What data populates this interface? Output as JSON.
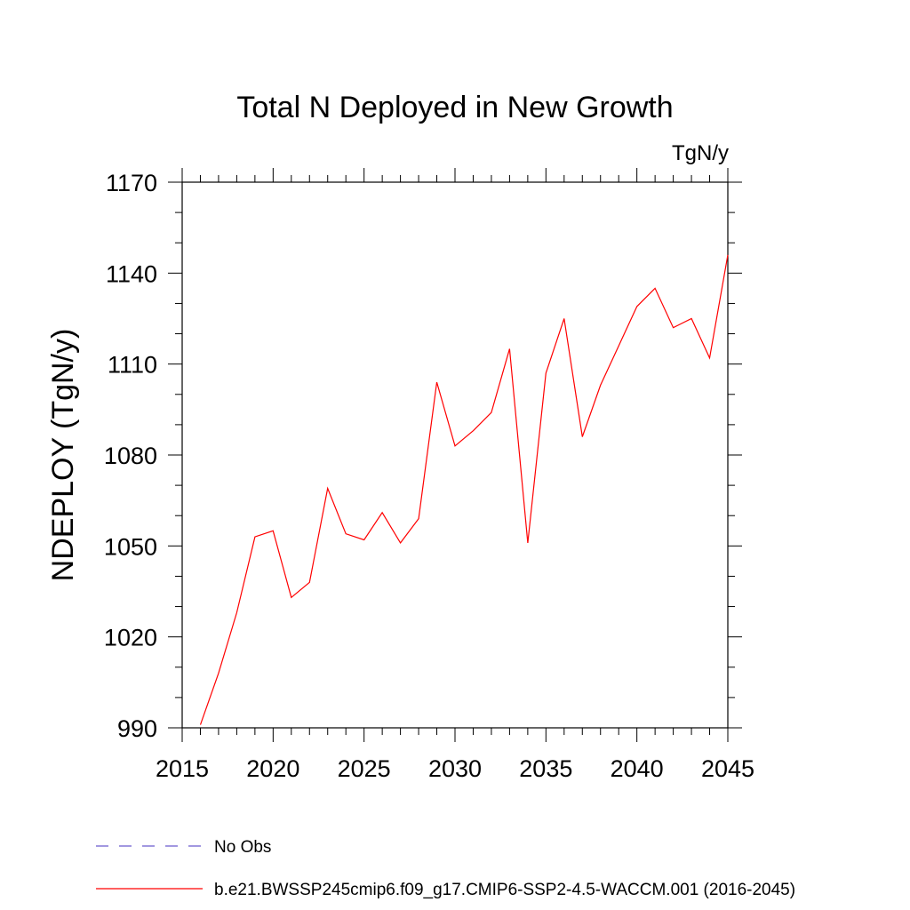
{
  "chart_data": {
    "type": "line",
    "title": "Total N Deployed in New Growth",
    "units_label": "TgN/y",
    "ylabel": "NDEPLOY  (TgN/y)",
    "xlabel": "",
    "xlim": [
      2015,
      2045
    ],
    "ylim": [
      990,
      1170
    ],
    "x_ticks": [
      2015,
      2020,
      2025,
      2030,
      2035,
      2040,
      2045
    ],
    "y_ticks": [
      990,
      1020,
      1050,
      1080,
      1110,
      1140,
      1170
    ],
    "x_minor_step": 1,
    "y_minor_step": 10,
    "grid": false,
    "legend_position": "bottom-left, below plot",
    "series": [
      {
        "name": "b.e21.BWSSP245cmip6.f09_g17.CMIP6-SSP2-4.5-WACCM.001 (2016-2045)",
        "color": "#ff0000",
        "style": "solid",
        "x": [
          2016,
          2017,
          2018,
          2019,
          2020,
          2021,
          2022,
          2023,
          2024,
          2025,
          2026,
          2027,
          2028,
          2029,
          2030,
          2031,
          2032,
          2033,
          2034,
          2035,
          2036,
          2037,
          2038,
          2039,
          2040,
          2041,
          2042,
          2043,
          2044,
          2045
        ],
        "values": [
          991,
          1008,
          1028,
          1053,
          1055,
          1033,
          1038,
          1069,
          1054,
          1052,
          1061,
          1051,
          1059,
          1104,
          1083,
          1088,
          1094,
          1115,
          1051,
          1107,
          1125,
          1086,
          1103,
          1116,
          1129,
          1135,
          1122,
          1125,
          1112,
          1146
        ]
      }
    ],
    "legend": [
      {
        "label": "No Obs",
        "color": "#6a5acd",
        "style": "dashed"
      },
      {
        "label": "b.e21.BWSSP245cmip6.f09_g17.CMIP6-SSP2-4.5-WACCM.001 (2016-2045)",
        "color": "#ff0000",
        "style": "solid"
      }
    ]
  }
}
